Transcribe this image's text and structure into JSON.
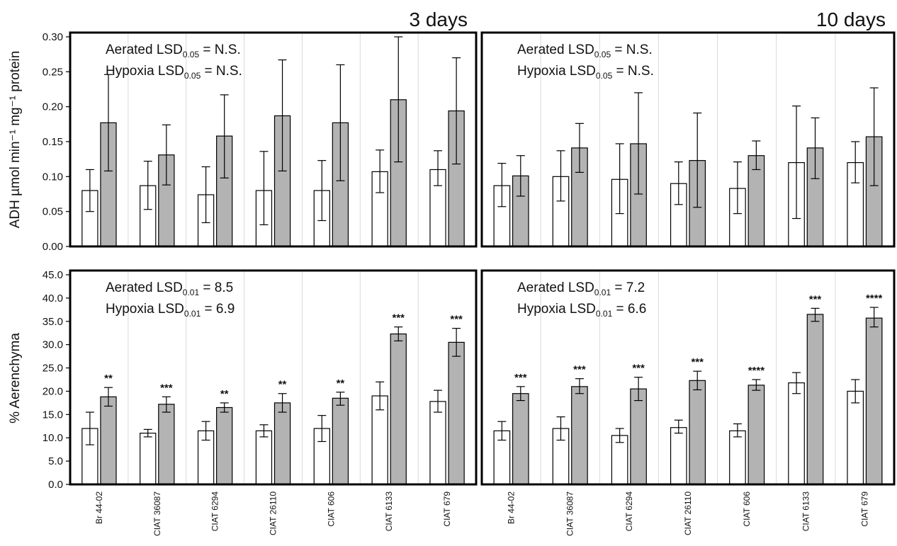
{
  "colors": {
    "aerated": "#ffffff",
    "hypoxia": "#b3b3b3",
    "frame": "#000000"
  },
  "figure": {
    "col_titles": [
      "3 days",
      "10 days"
    ],
    "row_ylabels": [
      "ADH µmol min⁻¹ mg⁻¹ protein",
      "% Aerenchyma"
    ]
  },
  "chart_data": [
    {
      "type": "bar",
      "title": "3 days",
      "ylabel": "ADH µmol min⁻¹ mg⁻¹ protein",
      "categories": [
        "Br 44-02",
        "CIAT 36087",
        "CIAT 6294",
        "CIAT 26110",
        "CIAT 606",
        "CIAT 6133",
        "CIAT 679"
      ],
      "ylim": [
        0,
        0.3
      ],
      "yticks": [
        "0.00",
        "0.05",
        "0.10",
        "0.15",
        "0.20",
        "0.25",
        "0.30"
      ],
      "annotation": [
        {
          "prefix": "Aerated LSD",
          "sub": "0.05",
          "suffix": " = N.S."
        },
        {
          "prefix": "Hypoxia LSD",
          "sub": "0.05",
          "suffix": " = N.S."
        }
      ],
      "series": [
        {
          "values": [
            0.08,
            0.087,
            0.074,
            0.08,
            0.08,
            0.107,
            0.11
          ],
          "err_low": [
            0.05,
            0.053,
            0.034,
            0.031,
            0.037,
            0.077,
            0.087
          ],
          "err_high": [
            0.11,
            0.122,
            0.114,
            0.136,
            0.123,
            0.138,
            0.137
          ]
        },
        {
          "values": [
            0.177,
            0.131,
            0.158,
            0.187,
            0.177,
            0.21,
            0.194
          ],
          "err_low": [
            0.108,
            0.088,
            0.098,
            0.108,
            0.094,
            0.121,
            0.118
          ],
          "err_high": [
            0.246,
            0.174,
            0.217,
            0.267,
            0.26,
            0.3,
            0.27
          ]
        }
      ],
      "significance": [
        "",
        "",
        "",
        "",
        "",
        "",
        ""
      ]
    },
    {
      "type": "bar",
      "title": "10 days",
      "ylabel": "",
      "categories": [
        "Br 44-02",
        "CIAT 36087",
        "CIAT 6294",
        "CIAT 26110",
        "CIAT 606",
        "CIAT 6133",
        "CIAT 679"
      ],
      "ylim": [
        0,
        0.3
      ],
      "yticks": [],
      "annotation": [
        {
          "prefix": "Aerated LSD",
          "sub": "0.05",
          "suffix": " = N.S."
        },
        {
          "prefix": "Hypoxia LSD",
          "sub": "0.05",
          "suffix": " = N.S."
        }
      ],
      "series": [
        {
          "values": [
            0.087,
            0.1,
            0.096,
            0.09,
            0.083,
            0.12,
            0.12
          ],
          "err_low": [
            0.057,
            0.065,
            0.047,
            0.06,
            0.047,
            0.04,
            0.091
          ],
          "err_high": [
            0.119,
            0.137,
            0.147,
            0.121,
            0.121,
            0.201,
            0.15
          ]
        },
        {
          "values": [
            0.101,
            0.141,
            0.147,
            0.123,
            0.13,
            0.141,
            0.157
          ],
          "err_low": [
            0.072,
            0.106,
            0.075,
            0.056,
            0.11,
            0.097,
            0.087
          ],
          "err_high": [
            0.13,
            0.176,
            0.22,
            0.191,
            0.151,
            0.184,
            0.227
          ]
        }
      ],
      "significance": [
        "",
        "",
        "",
        "",
        "",
        "",
        ""
      ]
    },
    {
      "type": "bar",
      "title": "",
      "ylabel": "% Aerenchyma",
      "categories": [
        "Br 44-02",
        "CIAT 36087",
        "CIAT 6294",
        "CIAT 26110",
        "CIAT 606",
        "CIAT 6133",
        "CIAT 679"
      ],
      "ylim": [
        0,
        45
      ],
      "yticks": [
        "0.0",
        "5.0",
        "10.0",
        "15.0",
        "20.0",
        "25.0",
        "30.0",
        "35.0",
        "40.0",
        "45.0"
      ],
      "annotation": [
        {
          "prefix": "Aerated LSD",
          "sub": "0.01",
          "suffix": " = 8.5"
        },
        {
          "prefix": "Hypoxia LSD",
          "sub": "0.01",
          "suffix": " = 6.9"
        }
      ],
      "series": [
        {
          "values": [
            12.0,
            11.0,
            11.5,
            11.5,
            12.0,
            19.0,
            17.8
          ],
          "err_low": [
            8.5,
            10.2,
            9.5,
            10.2,
            9.2,
            16.0,
            15.5
          ],
          "err_high": [
            15.5,
            11.8,
            13.5,
            12.8,
            14.8,
            22.0,
            20.2
          ]
        },
        {
          "values": [
            18.8,
            17.2,
            16.5,
            17.5,
            18.5,
            32.3,
            30.5
          ],
          "err_low": [
            16.8,
            15.5,
            15.5,
            15.5,
            17.0,
            30.8,
            27.5
          ],
          "err_high": [
            20.8,
            18.8,
            17.5,
            19.5,
            19.8,
            33.8,
            33.5
          ]
        }
      ],
      "significance": [
        "**",
        "***",
        "**",
        "**",
        "**",
        "***",
        "***"
      ]
    },
    {
      "type": "bar",
      "title": "",
      "ylabel": "",
      "categories": [
        "Br 44-02",
        "CIAT 36087",
        "CIAT 6294",
        "CIAT 26110",
        "CIAT 606",
        "CIAT 6133",
        "CIAT 679"
      ],
      "ylim": [
        0,
        45
      ],
      "yticks": [],
      "annotation": [
        {
          "prefix": "Aerated LSD",
          "sub": "0.01",
          "suffix": " = 7.2"
        },
        {
          "prefix": "Hypoxia LSD",
          "sub": "0.01",
          "suffix": " = 6.6"
        }
      ],
      "series": [
        {
          "values": [
            11.5,
            12.0,
            10.5,
            12.2,
            11.5,
            21.8,
            20.0
          ],
          "err_low": [
            9.5,
            9.5,
            9.0,
            11.0,
            10.2,
            19.5,
            17.5
          ],
          "err_high": [
            13.5,
            14.5,
            12.0,
            13.8,
            13.0,
            24.0,
            22.5
          ]
        },
        {
          "values": [
            19.5,
            21.0,
            20.5,
            22.3,
            21.3,
            36.5,
            35.7
          ],
          "err_low": [
            18.0,
            19.5,
            18.0,
            20.3,
            20.2,
            35.0,
            33.8
          ],
          "err_high": [
            21.0,
            22.7,
            23.0,
            24.3,
            22.5,
            37.8,
            38.0
          ]
        }
      ],
      "significance": [
        "***",
        "***",
        "***",
        "***",
        "****",
        "***",
        "****"
      ]
    }
  ]
}
